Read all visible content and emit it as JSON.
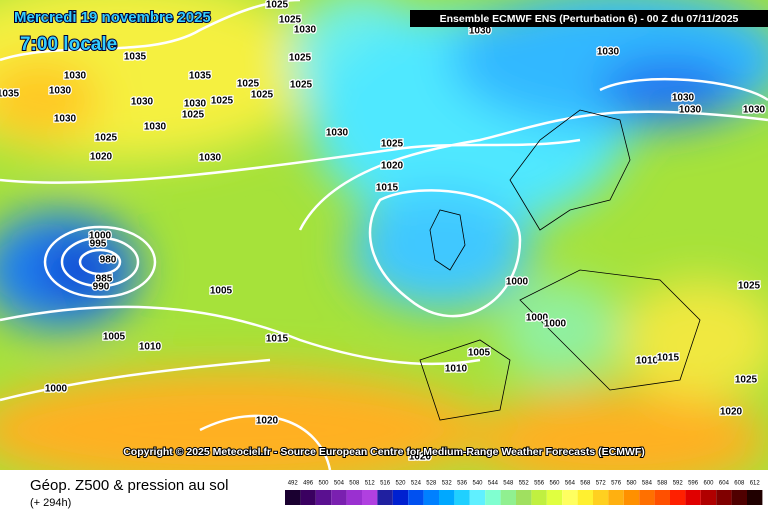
{
  "header": {
    "date": "Mercredi 19 novembre 2025",
    "time": "7:00 locale",
    "run": "Ensemble ECMWF ENS  (Perturbation 6)  -  00 Z du 07/11/2025"
  },
  "map": {
    "isobar_labels": [
      1025,
      1025,
      1030,
      1025,
      1035,
      1035,
      1030,
      1030,
      1030,
      1030,
      1025,
      1025,
      1025,
      1025,
      1025,
      1030,
      1030,
      1025,
      1020,
      1030,
      1030,
      1035,
      1030,
      1030,
      1030,
      1030,
      1030,
      1025,
      1020,
      1015,
      1025,
      1000,
      995,
      980,
      985,
      990,
      1005,
      1000,
      1005,
      1010,
      1015,
      1000,
      1000,
      1005,
      1010,
      1010,
      1015,
      1025,
      1000,
      1020,
      1020,
      1020
    ],
    "copyright": "Copyright © 2025 Meteociel.fr - Source European Centre for Medium-Range Weather Forecasts (ECMWF)"
  },
  "footer": {
    "title": "Géop. Z500 & pression au sol",
    "lead": "(+ 294h)"
  },
  "scale": {
    "values": [
      492,
      496,
      500,
      504,
      508,
      512,
      516,
      520,
      524,
      528,
      532,
      536,
      540,
      544,
      548,
      552,
      556,
      560,
      564,
      568,
      572,
      576,
      580,
      584,
      588,
      592,
      596,
      600,
      604,
      608,
      612
    ],
    "colors": [
      "#1a0030",
      "#3a0060",
      "#5a1090",
      "#7a20b0",
      "#9a30d0",
      "#b040e0",
      "#2020a0",
      "#0020d0",
      "#0050f0",
      "#0080ff",
      "#00a8ff",
      "#20d0ff",
      "#60f0ff",
      "#80ffd0",
      "#90f090",
      "#a0e060",
      "#c0f040",
      "#e0ff40",
      "#ffff60",
      "#fff030",
      "#ffd020",
      "#ffb010",
      "#ff9000",
      "#ff7000",
      "#ff5000",
      "#ff2000",
      "#e00000",
      "#b00000",
      "#800000",
      "#500000",
      "#200000"
    ]
  }
}
